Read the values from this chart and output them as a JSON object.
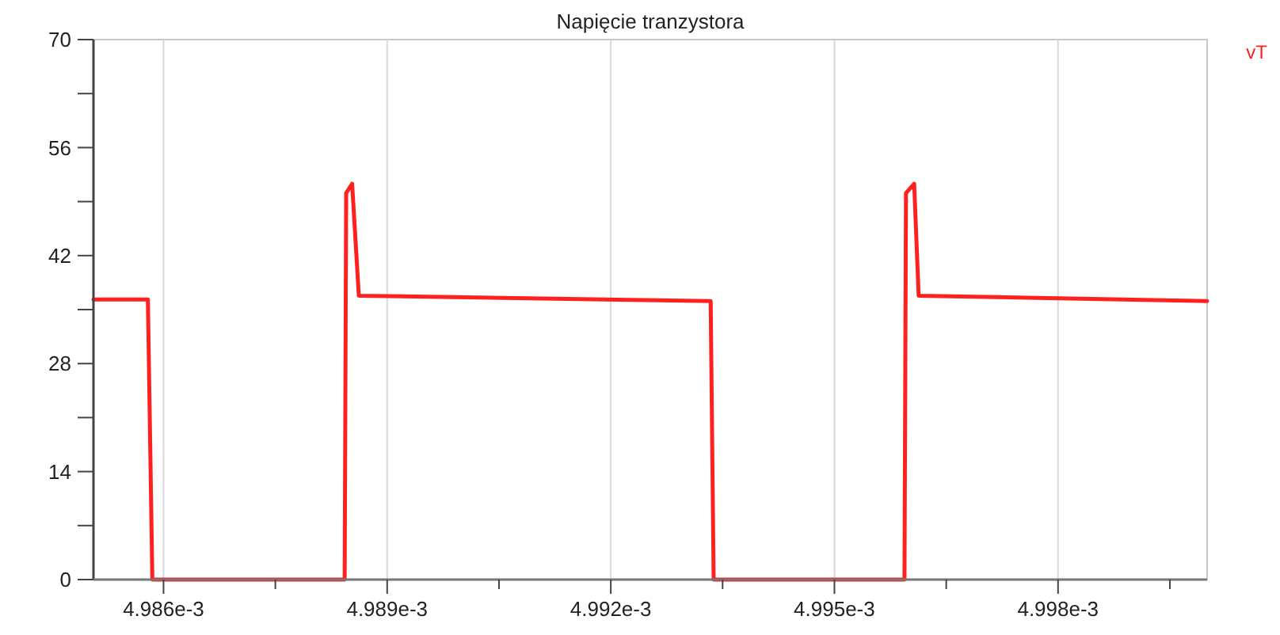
{
  "chart_data": {
    "type": "line",
    "title": "Napięcie tranzystora",
    "x": [
      0.00498506,
      0.00498579,
      0.00498585,
      0.00498843,
      0.00498845,
      0.00498853,
      0.00498862,
      0.00499334,
      0.00499338,
      0.00499594,
      0.00499596,
      0.00499607,
      0.00499613,
      0.005
    ],
    "series": [
      {
        "name": "vT",
        "color": "#ff2020",
        "values": [
          36.3,
          36.3,
          0,
          0,
          50.1,
          51.3,
          36.8,
          36.1,
          0,
          0,
          50.1,
          51.3,
          36.8,
          36.1
        ]
      }
    ],
    "xlim": [
      0.00498506,
      0.005
    ],
    "xticks": [
      {
        "value": 0.004986,
        "label": "4.986e-3"
      },
      {
        "value": 0.0049875,
        "label": null
      },
      {
        "value": 0.004989,
        "label": "4.989e-3"
      },
      {
        "value": 0.0049905,
        "label": null
      },
      {
        "value": 0.004992,
        "label": "4.992e-3"
      },
      {
        "value": 0.0049935,
        "label": null
      },
      {
        "value": 0.004995,
        "label": "4.995e-3"
      },
      {
        "value": 0.0049965,
        "label": null
      },
      {
        "value": 0.004998,
        "label": "4.998e-3"
      },
      {
        "value": 0.0049995,
        "label": null
      }
    ],
    "ylim": [
      0,
      70
    ],
    "yticks": [
      0,
      {
        "value": 7,
        "label": null
      },
      14,
      {
        "value": 21,
        "label": null
      },
      28,
      {
        "value": 35,
        "label": null
      },
      42,
      {
        "value": 49,
        "label": null
      },
      56,
      {
        "value": 63,
        "label": null
      },
      70
    ],
    "grid": "x",
    "legend": "top right",
    "marker": "none",
    "line_style": "solid"
  }
}
